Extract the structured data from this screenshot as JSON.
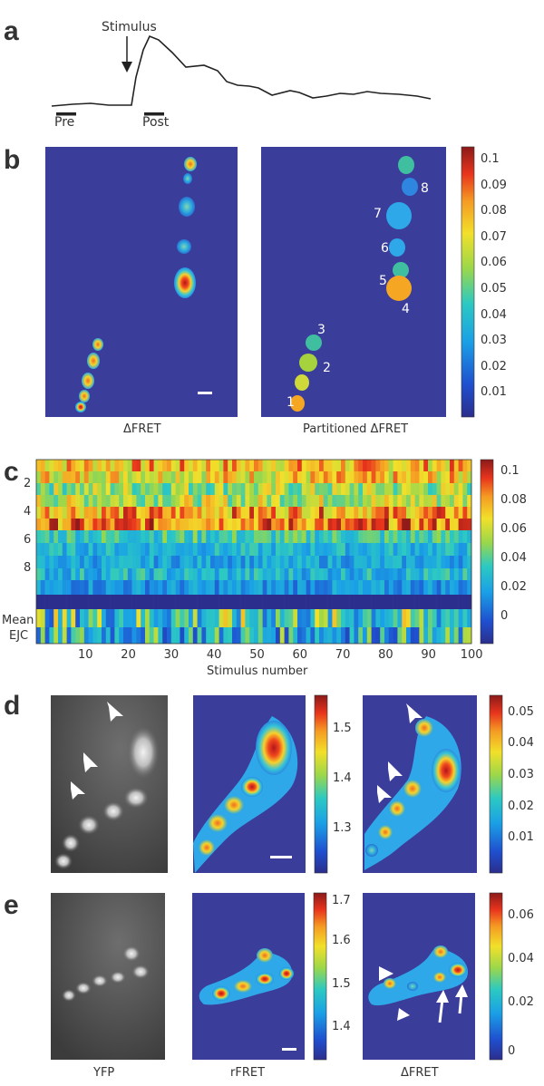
{
  "panel_a": {
    "letter": "a",
    "stimulus_label": "Stimulus",
    "pre_label": "Pre",
    "post_label": "Post"
  },
  "panel_b": {
    "letter": "b",
    "left_caption": "ΔFRET",
    "right_caption": "Partitioned ΔFRET",
    "region_labels": [
      "1",
      "2",
      "3",
      "4",
      "5",
      "6",
      "7",
      "8"
    ],
    "colorbar_ticks": [
      "0.1",
      "0.09",
      "0.08",
      "0.07",
      "0.06",
      "0.05",
      "0.04",
      "0.03",
      "0.02",
      "0.01"
    ]
  },
  "panel_c": {
    "letter": "c",
    "row_labels": [
      "2",
      "4",
      "6",
      "8"
    ],
    "mean_label": "Mean",
    "ejc_label": "EJC",
    "xticks": [
      "10",
      "20",
      "30",
      "40",
      "50",
      "60",
      "70",
      "80",
      "90",
      "100"
    ],
    "xlabel": "Stimulus number",
    "colorbar_ticks": [
      "0.1",
      "0.08",
      "0.06",
      "0.04",
      "0.02",
      "0"
    ]
  },
  "panel_d": {
    "letter": "d",
    "mid_colorbar_ticks": [
      "1.5",
      "1.4",
      "1.3"
    ],
    "right_colorbar_ticks": [
      "0.05",
      "0.04",
      "0.03",
      "0.02",
      "0.01"
    ]
  },
  "panel_e": {
    "letter": "e",
    "captions": [
      "YFP",
      "rFRET",
      "ΔFRET"
    ],
    "mid_colorbar_ticks": [
      "1.7",
      "1.6",
      "1.5",
      "1.4"
    ],
    "right_colorbar_ticks": [
      "0.06",
      "0.04",
      "0.02",
      "0"
    ]
  },
  "colors": {
    "map_background": "#3a3d99",
    "jet_low": "#2b2e8c",
    "jet_high": "#8b1a1a"
  }
}
